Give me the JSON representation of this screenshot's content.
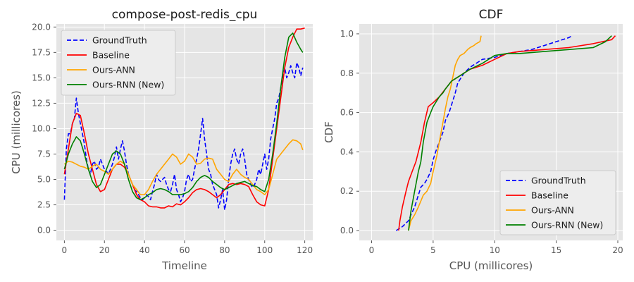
{
  "chart_data": [
    {
      "type": "line",
      "title": "compose-post-redis_cpu",
      "xlabel": "Timeline",
      "ylabel": "CPU (millicores)",
      "xlim": [
        -4,
        124
      ],
      "ylim": [
        -1,
        20.3
      ],
      "xticks": [
        0,
        20,
        40,
        60,
        80,
        100,
        120
      ],
      "yticks": [
        0.0,
        2.5,
        5.0,
        7.5,
        10.0,
        12.5,
        15.0,
        17.5,
        20.0
      ],
      "ytick_labels": [
        "0.0",
        "2.5",
        "5.0",
        "7.5",
        "10.0",
        "12.5",
        "15.0",
        "17.5",
        "20.0"
      ],
      "grid": true,
      "legend_position": "top-left",
      "series": [
        {
          "name": "GroundTruth",
          "color": "#0000ff",
          "dash": "dashed",
          "x": [
            0,
            1,
            2,
            3,
            4,
            5,
            6,
            7,
            8,
            9,
            10,
            11,
            12,
            13,
            14,
            15,
            16,
            17,
            18,
            19,
            20,
            21,
            22,
            23,
            24,
            25,
            26,
            27,
            28,
            29,
            30,
            31,
            32,
            33,
            34,
            35,
            36,
            37,
            38,
            39,
            40,
            41,
            42,
            43,
            44,
            45,
            46,
            47,
            48,
            49,
            50,
            51,
            52,
            53,
            54,
            55,
            56,
            57,
            58,
            59,
            60,
            61,
            62,
            63,
            64,
            65,
            66,
            67,
            68,
            69,
            70,
            71,
            72,
            73,
            74,
            75,
            76,
            77,
            78,
            79,
            80,
            81,
            82,
            83,
            84,
            85,
            86,
            87,
            88,
            89,
            90,
            91,
            92,
            93,
            94,
            95,
            96,
            97,
            98,
            99,
            100,
            101,
            102,
            103,
            104,
            105,
            106,
            107,
            108,
            109,
            110,
            111,
            112,
            113,
            114,
            115,
            116,
            117,
            118,
            119
          ],
          "y": [
            3.0,
            8.0,
            9.5,
            9.5,
            10.5,
            11.0,
            13.0,
            11.5,
            10.5,
            9.5,
            8.5,
            7.0,
            6.0,
            5.5,
            6.5,
            6.8,
            6.0,
            6.2,
            7.0,
            6.5,
            6.0,
            5.8,
            5.5,
            6.0,
            6.5,
            7.2,
            8.2,
            7.0,
            8.0,
            8.8,
            7.8,
            6.5,
            5.5,
            5.0,
            4.5,
            4.0,
            3.8,
            3.5,
            3.2,
            3.0,
            3.2,
            3.5,
            3.3,
            3.0,
            3.8,
            4.5,
            5.5,
            5.0,
            4.8,
            5.0,
            5.2,
            4.5,
            4.0,
            3.8,
            4.5,
            5.5,
            4.0,
            3.5,
            2.8,
            3.2,
            3.8,
            5.0,
            5.5,
            4.8,
            5.0,
            6.0,
            7.0,
            8.0,
            9.5,
            11.0,
            9.0,
            7.5,
            6.0,
            5.5,
            4.5,
            4.0,
            3.5,
            2.2,
            3.0,
            4.0,
            2.0,
            3.0,
            5.0,
            6.5,
            7.5,
            8.0,
            7.0,
            6.5,
            7.5,
            8.0,
            7.0,
            5.5,
            5.0,
            4.5,
            4.2,
            4.5,
            5.0,
            6.0,
            5.5,
            6.5,
            7.5,
            6.0,
            7.0,
            9.0,
            10.0,
            11.0,
            12.5,
            13.0,
            14.0,
            15.0,
            16.0,
            15.0,
            15.5,
            16.2,
            15.5,
            15.0,
            16.5,
            16.0,
            15.2,
            16.0
          ]
        },
        {
          "name": "Baseline",
          "color": "#ff0000",
          "dash": "solid",
          "x": [
            0,
            2,
            4,
            6,
            8,
            10,
            12,
            14,
            16,
            18,
            20,
            22,
            24,
            26,
            28,
            30,
            32,
            34,
            36,
            38,
            40,
            42,
            44,
            46,
            48,
            50,
            52,
            54,
            56,
            58,
            60,
            62,
            64,
            66,
            68,
            70,
            72,
            74,
            76,
            78,
            80,
            82,
            84,
            86,
            88,
            90,
            92,
            94,
            96,
            98,
            100,
            102,
            104,
            106,
            108,
            110,
            112,
            114,
            116,
            118,
            120
          ],
          "y": [
            5.5,
            8.0,
            10.5,
            11.5,
            11.3,
            9.5,
            7.5,
            6.0,
            4.5,
            3.8,
            4.0,
            5.0,
            6.0,
            6.5,
            6.5,
            6.2,
            5.5,
            4.5,
            3.5,
            3.0,
            2.8,
            2.4,
            2.3,
            2.3,
            2.2,
            2.2,
            2.4,
            2.3,
            2.6,
            2.5,
            2.8,
            3.2,
            3.7,
            4.0,
            4.1,
            4.0,
            3.8,
            3.5,
            3.2,
            3.5,
            4.0,
            4.5,
            4.6,
            4.5,
            4.6,
            4.5,
            4.3,
            3.5,
            2.8,
            2.5,
            2.4,
            4.0,
            7.0,
            10.0,
            13.0,
            16.0,
            18.0,
            19.0,
            19.8,
            19.8,
            19.9
          ]
        },
        {
          "name": "Ours-ANN",
          "color": "#ffa500",
          "dash": "solid",
          "x": [
            0,
            2,
            4,
            6,
            8,
            10,
            12,
            14,
            16,
            18,
            20,
            22,
            24,
            26,
            28,
            30,
            32,
            34,
            36,
            38,
            40,
            42,
            44,
            46,
            48,
            50,
            52,
            54,
            56,
            58,
            60,
            62,
            64,
            66,
            68,
            70,
            72,
            74,
            76,
            78,
            80,
            82,
            84,
            86,
            88,
            90,
            92,
            94,
            96,
            98,
            100,
            102,
            104,
            106,
            108,
            110,
            112,
            114,
            116,
            118,
            119
          ],
          "y": [
            6.5,
            6.8,
            6.7,
            6.5,
            6.3,
            6.2,
            6.0,
            6.3,
            6.5,
            6.0,
            5.8,
            5.5,
            6.0,
            6.5,
            6.8,
            6.5,
            5.5,
            4.5,
            4.0,
            3.5,
            3.5,
            4.0,
            4.8,
            5.5,
            6.0,
            6.5,
            7.0,
            7.5,
            7.2,
            6.5,
            6.8,
            7.5,
            7.2,
            6.5,
            6.6,
            7.0,
            7.1,
            7.0,
            6.0,
            5.5,
            5.0,
            4.8,
            5.5,
            6.0,
            5.5,
            5.2,
            5.0,
            4.5,
            4.0,
            3.8,
            3.5,
            4.0,
            5.5,
            7.0,
            7.5,
            8.0,
            8.5,
            8.9,
            8.8,
            8.5,
            7.9
          ]
        },
        {
          "name": "Ours-RNN (New)",
          "color": "#008000",
          "dash": "solid",
          "x": [
            0,
            2,
            4,
            6,
            8,
            10,
            12,
            14,
            16,
            18,
            20,
            22,
            24,
            26,
            28,
            30,
            32,
            34,
            36,
            38,
            40,
            42,
            44,
            46,
            48,
            50,
            52,
            54,
            56,
            58,
            60,
            62,
            64,
            66,
            68,
            70,
            72,
            74,
            76,
            78,
            80,
            82,
            84,
            86,
            88,
            90,
            92,
            94,
            96,
            98,
            100,
            102,
            104,
            106,
            108,
            110,
            112,
            114,
            116,
            118,
            119
          ],
          "y": [
            6.0,
            7.5,
            8.5,
            9.2,
            8.8,
            7.5,
            6.0,
            4.8,
            4.2,
            4.5,
            5.5,
            6.5,
            7.5,
            7.8,
            7.5,
            6.5,
            5.0,
            3.8,
            3.2,
            3.0,
            3.2,
            3.5,
            3.7,
            4.0,
            4.1,
            4.0,
            3.8,
            3.5,
            3.5,
            3.5,
            3.6,
            3.8,
            4.2,
            4.8,
            5.2,
            5.4,
            5.2,
            4.8,
            4.5,
            4.2,
            4.0,
            4.2,
            4.4,
            4.6,
            4.7,
            4.8,
            4.6,
            4.4,
            4.3,
            4.0,
            3.8,
            5.0,
            7.5,
            10.5,
            14.0,
            17.0,
            19.0,
            19.4,
            18.5,
            17.8,
            17.5
          ]
        }
      ]
    },
    {
      "type": "line",
      "title": "CDF",
      "xlabel": "CPU (millicores)",
      "ylabel": "CDF",
      "xlim": [
        -1,
        20.4
      ],
      "ylim": [
        -0.05,
        1.05
      ],
      "xticks": [
        0,
        5,
        10,
        15,
        20
      ],
      "yticks": [
        0.0,
        0.2,
        0.4,
        0.6,
        0.8,
        1.0
      ],
      "ytick_labels": [
        "0.0",
        "0.2",
        "0.4",
        "0.6",
        "0.8",
        "1.0"
      ],
      "grid": true,
      "legend_position": "lower-right",
      "series": [
        {
          "name": "GroundTruth",
          "color": "#0000ff",
          "dash": "dashed",
          "x": [
            2.0,
            2.5,
            3.0,
            3.2,
            3.5,
            3.8,
            4.0,
            4.3,
            4.5,
            4.8,
            5.0,
            5.2,
            5.5,
            5.8,
            6.0,
            6.3,
            6.5,
            6.8,
            7.0,
            7.5,
            8.0,
            8.5,
            9.0,
            10.0,
            11.0,
            12.0,
            13.0,
            14.0,
            15.0,
            16.0,
            16.3
          ],
          "y": [
            0.0,
            0.02,
            0.05,
            0.08,
            0.12,
            0.18,
            0.22,
            0.24,
            0.26,
            0.3,
            0.36,
            0.4,
            0.45,
            0.5,
            0.56,
            0.6,
            0.64,
            0.7,
            0.75,
            0.8,
            0.83,
            0.85,
            0.87,
            0.88,
            0.9,
            0.91,
            0.92,
            0.94,
            0.96,
            0.98,
            0.99
          ]
        },
        {
          "name": "Baseline",
          "color": "#ff0000",
          "dash": "solid",
          "x": [
            2.2,
            2.3,
            2.5,
            2.8,
            3.0,
            3.3,
            3.6,
            4.0,
            4.3,
            4.6,
            5.0,
            5.5,
            6.0,
            6.5,
            7.0,
            7.5,
            8.0,
            9.0,
            10.0,
            11.0,
            12.0,
            14.0,
            16.0,
            18.0,
            19.5,
            19.8
          ],
          "y": [
            0.0,
            0.05,
            0.12,
            0.2,
            0.25,
            0.3,
            0.35,
            0.45,
            0.55,
            0.63,
            0.65,
            0.68,
            0.72,
            0.76,
            0.78,
            0.8,
            0.82,
            0.84,
            0.87,
            0.9,
            0.91,
            0.92,
            0.93,
            0.95,
            0.97,
            0.99
          ]
        },
        {
          "name": "Ours-ANN",
          "color": "#ffa500",
          "dash": "solid",
          "x": [
            3.0,
            3.2,
            3.5,
            3.8,
            4.0,
            4.2,
            4.5,
            4.8,
            5.0,
            5.3,
            5.5,
            5.8,
            6.0,
            6.2,
            6.4,
            6.6,
            6.8,
            7.0,
            7.2,
            7.5,
            7.8,
            8.0,
            8.3,
            8.5,
            8.8,
            8.9
          ],
          "y": [
            0.0,
            0.05,
            0.08,
            0.12,
            0.15,
            0.18,
            0.2,
            0.24,
            0.3,
            0.38,
            0.45,
            0.55,
            0.62,
            0.68,
            0.72,
            0.78,
            0.84,
            0.87,
            0.89,
            0.9,
            0.92,
            0.93,
            0.94,
            0.95,
            0.96,
            0.99
          ]
        },
        {
          "name": "Ours-RNN (New)",
          "color": "#008000",
          "dash": "solid",
          "x": [
            3.0,
            3.2,
            3.5,
            3.8,
            4.0,
            4.2,
            4.5,
            4.8,
            5.0,
            5.3,
            5.5,
            5.8,
            6.0,
            6.5,
            7.0,
            7.5,
            8.0,
            9.0,
            10.0,
            11.0,
            12.0,
            14.0,
            16.0,
            18.0,
            19.0,
            19.5
          ],
          "y": [
            0.0,
            0.1,
            0.2,
            0.3,
            0.35,
            0.45,
            0.55,
            0.6,
            0.63,
            0.66,
            0.68,
            0.7,
            0.72,
            0.76,
            0.78,
            0.8,
            0.82,
            0.85,
            0.89,
            0.9,
            0.9,
            0.91,
            0.92,
            0.93,
            0.96,
            0.99
          ]
        }
      ]
    }
  ]
}
